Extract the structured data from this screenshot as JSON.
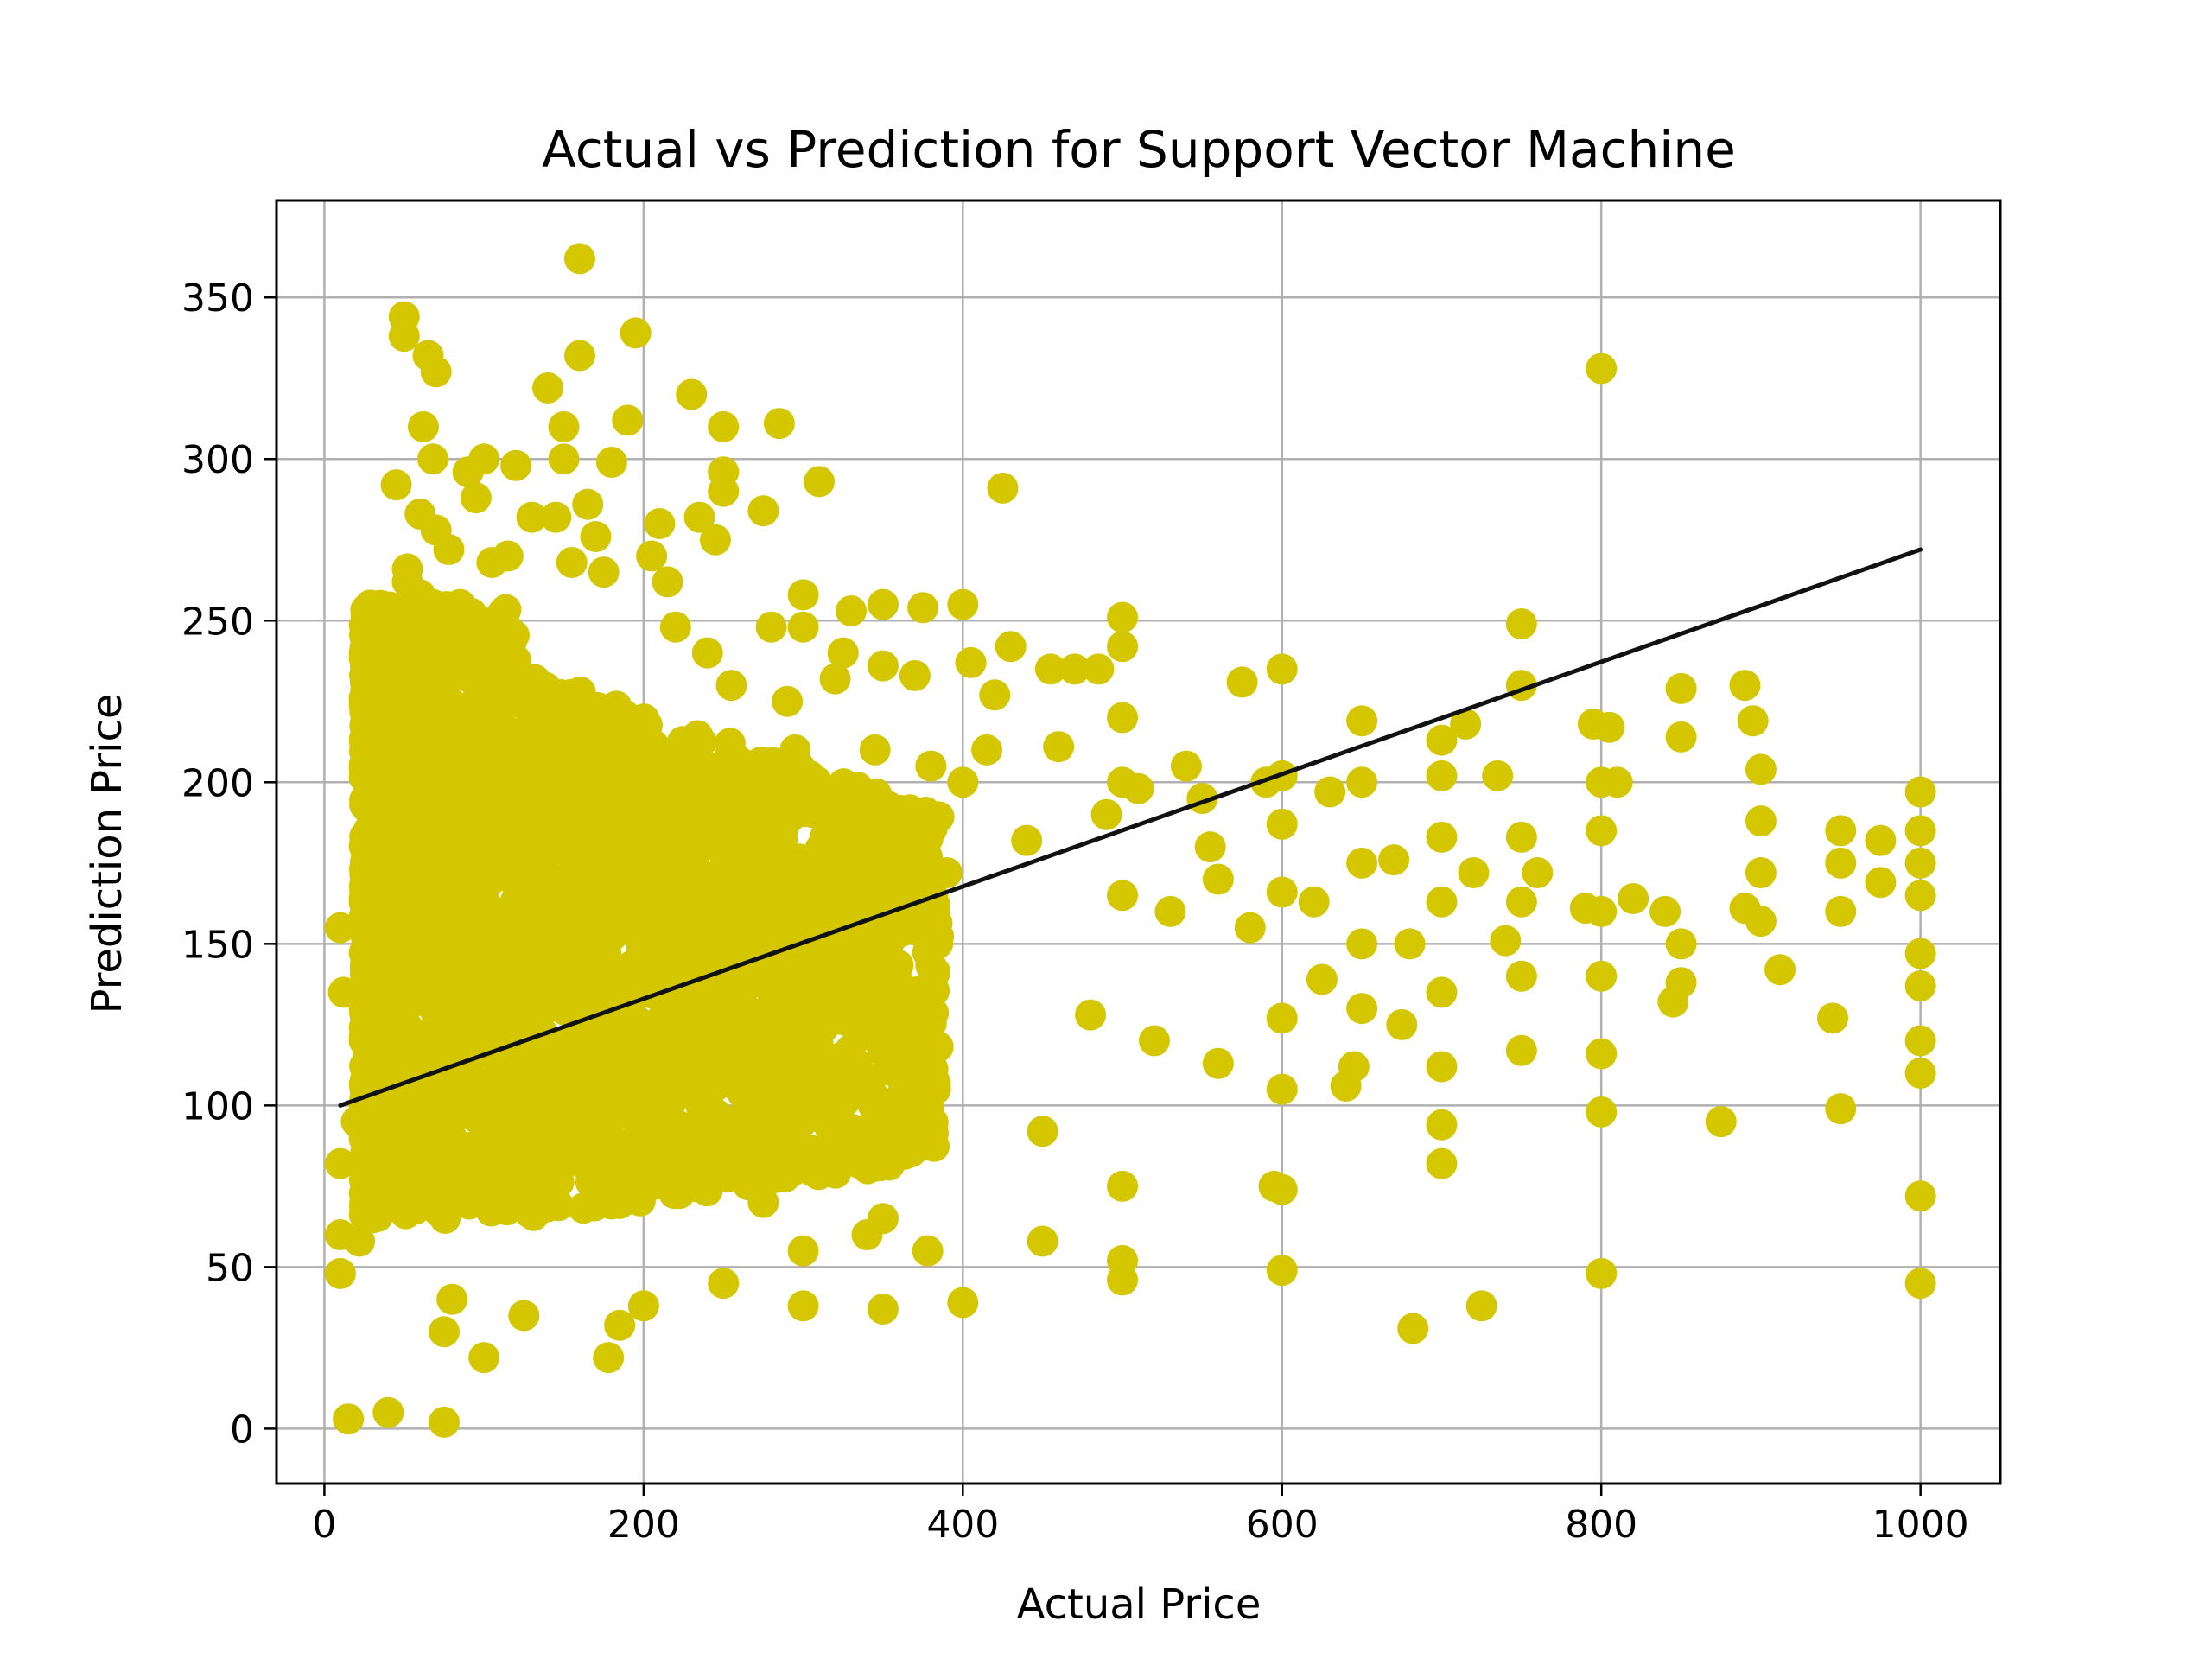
{
  "chart_data": {
    "type": "scatter",
    "title": "Actual vs Prediction for Support Vector Machine",
    "xlabel": "Actual Price",
    "ylabel": "Prediction Price",
    "xlim": [
      -30,
      1050
    ],
    "ylim": [
      -17,
      380
    ],
    "xticks": [
      0,
      200,
      400,
      600,
      800,
      1000
    ],
    "yticks": [
      0,
      50,
      100,
      150,
      200,
      250,
      300,
      350
    ],
    "grid": true,
    "legend": "none",
    "point_color": "#d4c700",
    "line_color": "#111111",
    "fit_line": {
      "x": [
        10,
        1000
      ],
      "y": [
        100,
        272
      ]
    },
    "series": [
      {
        "points": [
          [
            10,
            155
          ],
          [
            12,
            135
          ],
          [
            10,
            82
          ],
          [
            10,
            60
          ],
          [
            10,
            48
          ],
          [
            15,
            3
          ],
          [
            20,
            95
          ],
          [
            22,
            58
          ],
          [
            25,
            155
          ],
          [
            28,
            212
          ],
          [
            30,
            170
          ],
          [
            35,
            233
          ],
          [
            35,
            193
          ],
          [
            38,
            120
          ],
          [
            40,
            5
          ],
          [
            42,
            85
          ],
          [
            45,
            292
          ],
          [
            48,
            215
          ],
          [
            50,
            344
          ],
          [
            50,
            338
          ],
          [
            52,
            266
          ],
          [
            52,
            262
          ],
          [
            55,
            203
          ],
          [
            58,
            188
          ],
          [
            60,
            283
          ],
          [
            60,
            258
          ],
          [
            62,
            310
          ],
          [
            65,
            332
          ],
          [
            68,
            300
          ],
          [
            70,
            327
          ],
          [
            70,
            278
          ],
          [
            72,
            240
          ],
          [
            75,
            2
          ],
          [
            75,
            30
          ],
          [
            78,
            272
          ],
          [
            80,
            40
          ],
          [
            85,
            255
          ],
          [
            90,
            296
          ],
          [
            95,
            288
          ],
          [
            100,
            300
          ],
          [
            100,
            22
          ],
          [
            105,
            268
          ],
          [
            110,
            250
          ],
          [
            115,
            270
          ],
          [
            120,
            298
          ],
          [
            125,
            35
          ],
          [
            130,
            282
          ],
          [
            135,
            200
          ],
          [
            140,
            322
          ],
          [
            145,
            282
          ],
          [
            150,
            310
          ],
          [
            150,
            300
          ],
          [
            155,
            268
          ],
          [
            160,
            362
          ],
          [
            160,
            332
          ],
          [
            165,
            286
          ],
          [
            170,
            276
          ],
          [
            175,
            265
          ],
          [
            178,
            22
          ],
          [
            180,
            299
          ],
          [
            185,
            32
          ],
          [
            190,
            312
          ],
          [
            195,
            339
          ],
          [
            200,
            38
          ],
          [
            205,
            270
          ],
          [
            210,
            280
          ],
          [
            215,
            262
          ],
          [
            220,
            248
          ],
          [
            230,
            320
          ],
          [
            235,
            282
          ],
          [
            240,
            240
          ],
          [
            245,
            275
          ],
          [
            250,
            310
          ],
          [
            250,
            296
          ],
          [
            250,
            290
          ],
          [
            250,
            45
          ],
          [
            255,
            230
          ],
          [
            260,
            200
          ],
          [
            270,
            180
          ],
          [
            275,
            284
          ],
          [
            275,
            70
          ],
          [
            280,
            248
          ],
          [
            285,
            311
          ],
          [
            290,
            225
          ],
          [
            295,
            210
          ],
          [
            300,
            258
          ],
          [
            300,
            248
          ],
          [
            300,
            55
          ],
          [
            300,
            38
          ],
          [
            310,
            293
          ],
          [
            310,
            80
          ],
          [
            320,
            232
          ],
          [
            325,
            240
          ],
          [
            330,
            253
          ],
          [
            340,
            60
          ],
          [
            345,
            210
          ],
          [
            350,
            255
          ],
          [
            350,
            236
          ],
          [
            350,
            65
          ],
          [
            350,
            37
          ],
          [
            360,
            175
          ],
          [
            370,
            233
          ],
          [
            375,
            254
          ],
          [
            378,
            55
          ],
          [
            380,
            205
          ],
          [
            390,
            172
          ],
          [
            400,
            255
          ],
          [
            400,
            200
          ],
          [
            400,
            39
          ],
          [
            405,
            237
          ],
          [
            415,
            210
          ],
          [
            420,
            227
          ],
          [
            425,
            291
          ],
          [
            430,
            242
          ],
          [
            440,
            182
          ],
          [
            450,
            58
          ],
          [
            450,
            92
          ],
          [
            455,
            235
          ],
          [
            460,
            211
          ],
          [
            470,
            235
          ],
          [
            480,
            128
          ],
          [
            485,
            235
          ],
          [
            490,
            190
          ],
          [
            500,
            251
          ],
          [
            500,
            242
          ],
          [
            500,
            220
          ],
          [
            500,
            200
          ],
          [
            500,
            165
          ],
          [
            500,
            75
          ],
          [
            500,
            52
          ],
          [
            500,
            46
          ],
          [
            510,
            198
          ],
          [
            520,
            120
          ],
          [
            530,
            160
          ],
          [
            540,
            205
          ],
          [
            550,
            195
          ],
          [
            555,
            180
          ],
          [
            560,
            170
          ],
          [
            560,
            113
          ],
          [
            575,
            231
          ],
          [
            580,
            155
          ],
          [
            590,
            200
          ],
          [
            595,
            75
          ],
          [
            600,
            235
          ],
          [
            600,
            202
          ],
          [
            600,
            187
          ],
          [
            600,
            166
          ],
          [
            600,
            127
          ],
          [
            600,
            105
          ],
          [
            600,
            74
          ],
          [
            600,
            49
          ],
          [
            620,
            163
          ],
          [
            625,
            139
          ],
          [
            630,
            197
          ],
          [
            640,
            106
          ],
          [
            645,
            112
          ],
          [
            650,
            219
          ],
          [
            650,
            200
          ],
          [
            650,
            175
          ],
          [
            650,
            150
          ],
          [
            650,
            130
          ],
          [
            670,
            176
          ],
          [
            675,
            125
          ],
          [
            680,
            150
          ],
          [
            682,
            31
          ],
          [
            700,
            213
          ],
          [
            700,
            202
          ],
          [
            700,
            183
          ],
          [
            700,
            163
          ],
          [
            700,
            135
          ],
          [
            700,
            112
          ],
          [
            700,
            94
          ],
          [
            700,
            82
          ],
          [
            715,
            218
          ],
          [
            720,
            172
          ],
          [
            725,
            38
          ],
          [
            735,
            202
          ],
          [
            740,
            151
          ],
          [
            750,
            249
          ],
          [
            750,
            230
          ],
          [
            750,
            183
          ],
          [
            750,
            163
          ],
          [
            750,
            140
          ],
          [
            750,
            117
          ],
          [
            760,
            172
          ],
          [
            790,
            161
          ],
          [
            795,
            218
          ],
          [
            800,
            328
          ],
          [
            800,
            200
          ],
          [
            800,
            185
          ],
          [
            800,
            160
          ],
          [
            800,
            140
          ],
          [
            800,
            116
          ],
          [
            800,
            98
          ],
          [
            800,
            48
          ],
          [
            805,
            217
          ],
          [
            810,
            200
          ],
          [
            820,
            164
          ],
          [
            840,
            160
          ],
          [
            845,
            132
          ],
          [
            850,
            229
          ],
          [
            850,
            214
          ],
          [
            850,
            150
          ],
          [
            850,
            138
          ],
          [
            875,
            95
          ],
          [
            890,
            230
          ],
          [
            890,
            161
          ],
          [
            895,
            219
          ],
          [
            900,
            204
          ],
          [
            900,
            188
          ],
          [
            900,
            172
          ],
          [
            900,
            157
          ],
          [
            912,
            142
          ],
          [
            945,
            127
          ],
          [
            950,
            185
          ],
          [
            950,
            175
          ],
          [
            950,
            160
          ],
          [
            950,
            99
          ],
          [
            975,
            182
          ],
          [
            975,
            169
          ],
          [
            1000,
            197
          ],
          [
            1000,
            185
          ],
          [
            1000,
            175
          ],
          [
            1000,
            165
          ],
          [
            1000,
            147
          ],
          [
            1000,
            137
          ],
          [
            1000,
            120
          ],
          [
            1000,
            110
          ],
          [
            1000,
            72
          ],
          [
            1000,
            45
          ]
        ]
      }
    ]
  }
}
